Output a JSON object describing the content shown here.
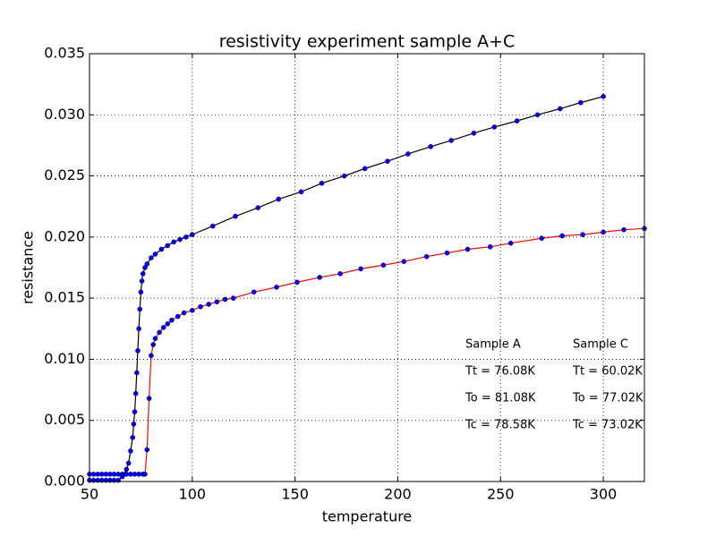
{
  "chart_data": {
    "type": "line",
    "title": "resistivity experiment sample A+C",
    "x_label": "temperature",
    "y_label": "resistance",
    "xlim": [
      50,
      320
    ],
    "ylim": [
      0,
      0.035
    ],
    "xticks": [
      50,
      100,
      150,
      200,
      250,
      300
    ],
    "yticks": [
      {
        "value": 0,
        "label": "0.000"
      },
      {
        "value": 0.005,
        "label": "0.005"
      },
      {
        "value": 0.01,
        "label": "0.010"
      },
      {
        "value": 0.015,
        "label": "0.015"
      },
      {
        "value": 0.02,
        "label": "0.020"
      },
      {
        "value": 0.025,
        "label": "0.025"
      },
      {
        "value": 0.03,
        "label": "0.030"
      },
      {
        "value": 0.035,
        "label": "0.035"
      }
    ],
    "grid": true,
    "series": [
      {
        "line_color": "#ff0000",
        "marker_color": "#0000ff",
        "x": [
          50,
          52,
          54,
          56,
          58,
          60,
          62,
          64,
          66,
          68,
          70,
          72,
          74,
          76,
          77,
          78,
          79,
          80,
          81,
          82,
          84,
          86,
          88,
          90,
          93,
          96,
          100,
          104,
          108,
          112,
          116,
          120,
          130,
          141,
          151,
          162,
          172,
          182,
          193,
          203,
          214,
          224,
          234,
          245,
          255,
          270,
          280,
          290,
          300,
          310,
          320
        ],
        "y": [
          0.0006,
          0.0006,
          0.0006,
          0.0006,
          0.0006,
          0.0006,
          0.0006,
          0.0006,
          0.0006,
          0.0006,
          0.0006,
          0.0006,
          0.0006,
          0.0006,
          0.0006,
          0.0026,
          0.0068,
          0.0103,
          0.0112,
          0.0117,
          0.0122,
          0.0126,
          0.0129,
          0.0132,
          0.0135,
          0.0138,
          0.014,
          0.0143,
          0.0145,
          0.0147,
          0.0149,
          0.015,
          0.0155,
          0.0159,
          0.0163,
          0.0167,
          0.017,
          0.0174,
          0.0177,
          0.018,
          0.0184,
          0.0187,
          0.019,
          0.0192,
          0.0195,
          0.0199,
          0.0201,
          0.0202,
          0.0204,
          0.0206,
          0.0207
        ]
      },
      {
        "line_color": "#000000",
        "marker_color": "#0000ff",
        "x": [
          50,
          52,
          54,
          56,
          58,
          60,
          62,
          64,
          66,
          68,
          69,
          70,
          71,
          71.5,
          72,
          72.5,
          73,
          73.5,
          74,
          74.5,
          75,
          75.5,
          76,
          77,
          78,
          80,
          82,
          85,
          88,
          91,
          94,
          97,
          100,
          110,
          121,
          132,
          142,
          153,
          163,
          174,
          184,
          195,
          205,
          216,
          226,
          237,
          247,
          258,
          268,
          279,
          289,
          300
        ],
        "y": [
          0.0001,
          0.0001,
          0.0001,
          0.0001,
          0.0001,
          0.0001,
          0.0001,
          0.0001,
          0.0004,
          0.001,
          0.0015,
          0.0025,
          0.0036,
          0.0047,
          0.0057,
          0.0072,
          0.0089,
          0.0107,
          0.0125,
          0.0141,
          0.0155,
          0.0164,
          0.017,
          0.0175,
          0.0178,
          0.0183,
          0.0186,
          0.019,
          0.0193,
          0.0196,
          0.0198,
          0.02,
          0.0202,
          0.0209,
          0.0217,
          0.0224,
          0.0231,
          0.0237,
          0.0244,
          0.025,
          0.0256,
          0.0262,
          0.0268,
          0.0274,
          0.0279,
          0.0285,
          0.029,
          0.0295,
          0.03,
          0.0305,
          0.031,
          0.0315
        ]
      }
    ],
    "annotations": [
      {
        "color": "#ff0000",
        "lines": [
          "Sample A",
          "Tt = 76.08K",
          "To = 81.08K",
          "Tc = 78.58K"
        ]
      },
      {
        "color": "#000000",
        "lines": [
          "Sample C",
          "Tt = 60.02K",
          "To = 77.02K",
          "Tc = 73.02K"
        ]
      }
    ]
  }
}
